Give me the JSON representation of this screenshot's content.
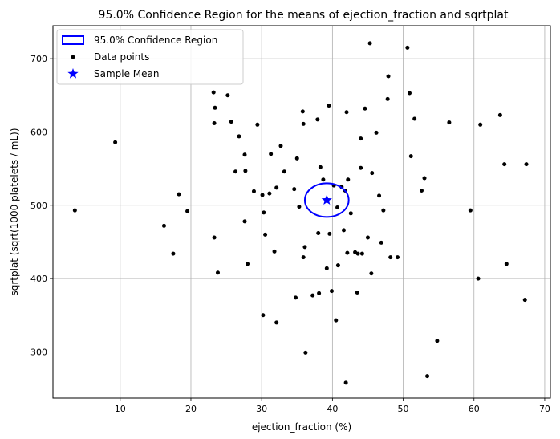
{
  "chart_data": {
    "type": "scatter",
    "title": "95.0% Confidence Region for the means of ejection_fraction and sqrtplat",
    "xlabel": "ejection_fraction (%)",
    "ylabel": "sqrtplat (sqrt(1000 platelets / mL))",
    "xlim": [
      0.5,
      70.8
    ],
    "ylim": [
      237,
      745
    ],
    "xticks": [
      10,
      20,
      30,
      40,
      50,
      60,
      70
    ],
    "yticks": [
      300,
      400,
      500,
      600,
      700
    ],
    "grid": true,
    "legend_position": "top-left",
    "legend": [
      {
        "label": "95.0% Confidence Region",
        "kind": "ellipse",
        "color": "#0000ff"
      },
      {
        "label": "Data points",
        "kind": "point",
        "color": "#000000"
      },
      {
        "label": "Sample Mean",
        "kind": "star",
        "color": "#0000ff"
      }
    ],
    "mean": {
      "x": 39.2,
      "y": 507
    },
    "ellipse": {
      "cx": 39.2,
      "cy": 507,
      "rx": 3.1,
      "ry": 23
    },
    "points": [
      [
        3.6,
        493
      ],
      [
        9.3,
        586
      ],
      [
        16.2,
        472
      ],
      [
        17.5,
        434
      ],
      [
        18.3,
        515
      ],
      [
        19.5,
        492
      ],
      [
        23.2,
        654
      ],
      [
        23.3,
        612
      ],
      [
        23.4,
        633
      ],
      [
        23.3,
        456
      ],
      [
        23.8,
        408
      ],
      [
        25.2,
        650
      ],
      [
        25.7,
        614
      ],
      [
        26.3,
        546
      ],
      [
        26.8,
        594
      ],
      [
        27.6,
        569
      ],
      [
        27.7,
        547
      ],
      [
        27.6,
        478
      ],
      [
        28.0,
        420
      ],
      [
        28.9,
        519
      ],
      [
        29.4,
        610
      ],
      [
        30.1,
        514
      ],
      [
        30.3,
        490
      ],
      [
        30.5,
        460
      ],
      [
        30.2,
        350
      ],
      [
        31.1,
        516
      ],
      [
        31.3,
        570
      ],
      [
        31.8,
        437
      ],
      [
        32.1,
        524
      ],
      [
        32.1,
        340
      ],
      [
        32.7,
        581
      ],
      [
        33.2,
        546
      ],
      [
        34.6,
        522
      ],
      [
        34.8,
        374
      ],
      [
        35.0,
        564
      ],
      [
        35.3,
        498
      ],
      [
        35.8,
        628
      ],
      [
        35.9,
        611
      ],
      [
        35.9,
        429
      ],
      [
        36.1,
        443
      ],
      [
        36.2,
        299
      ],
      [
        37.2,
        377
      ],
      [
        37.9,
        617
      ],
      [
        38.0,
        462
      ],
      [
        38.1,
        380
      ],
      [
        38.3,
        552
      ],
      [
        38.7,
        535
      ],
      [
        39.2,
        414
      ],
      [
        39.5,
        636
      ],
      [
        39.6,
        461
      ],
      [
        39.9,
        383
      ],
      [
        40.2,
        527
      ],
      [
        40.5,
        343
      ],
      [
        40.7,
        497
      ],
      [
        40.8,
        418
      ],
      [
        41.3,
        525
      ],
      [
        41.6,
        466
      ],
      [
        41.8,
        520
      ],
      [
        41.9,
        258
      ],
      [
        42.0,
        627
      ],
      [
        42.1,
        435
      ],
      [
        42.2,
        535
      ],
      [
        42.6,
        489
      ],
      [
        43.2,
        436
      ],
      [
        43.5,
        381
      ],
      [
        43.6,
        434
      ],
      [
        44.0,
        591
      ],
      [
        44.0,
        551
      ],
      [
        44.2,
        434
      ],
      [
        44.6,
        632
      ],
      [
        45.0,
        456
      ],
      [
        45.3,
        721
      ],
      [
        45.5,
        407
      ],
      [
        45.6,
        544
      ],
      [
        46.2,
        599
      ],
      [
        46.6,
        513
      ],
      [
        46.9,
        449
      ],
      [
        47.2,
        493
      ],
      [
        47.8,
        645
      ],
      [
        47.9,
        676
      ],
      [
        48.2,
        429
      ],
      [
        49.2,
        429
      ],
      [
        50.6,
        715
      ],
      [
        50.9,
        653
      ],
      [
        51.1,
        567
      ],
      [
        51.6,
        618
      ],
      [
        52.6,
        520
      ],
      [
        53.0,
        537
      ],
      [
        53.4,
        267
      ],
      [
        54.8,
        315
      ],
      [
        56.5,
        613
      ],
      [
        59.5,
        493
      ],
      [
        60.6,
        400
      ],
      [
        60.9,
        610
      ],
      [
        63.7,
        623
      ],
      [
        64.3,
        556
      ],
      [
        64.6,
        420
      ],
      [
        67.2,
        371
      ],
      [
        67.4,
        556
      ]
    ]
  }
}
